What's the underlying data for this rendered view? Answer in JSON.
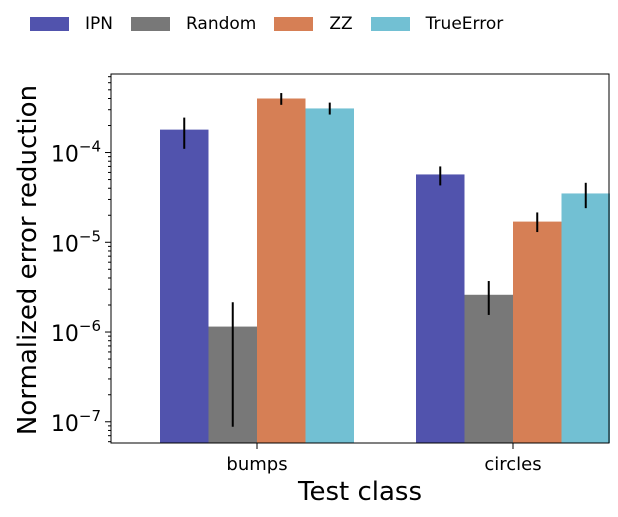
{
  "chart_data": {
    "type": "bar",
    "xlabel": "Test class",
    "ylabel": "Normalized error reduction",
    "yscale": "log",
    "ylim": [
      5.8e-08,
      0.00075
    ],
    "legend_position": "top",
    "grid": false,
    "categories": [
      "bumps",
      "circles"
    ],
    "series": [
      {
        "name": "IPN",
        "color": "#5153ad",
        "values": [
          0.00018,
          5.7e-05
        ],
        "err_low": [
          0.00011,
          4.3e-05
        ],
        "err_high": [
          0.000245,
          7e-05
        ]
      },
      {
        "name": "Random",
        "color": "#787878",
        "values": [
          1.15e-06,
          2.6e-06
        ],
        "err_low": [
          8.8e-08,
          1.55e-06
        ],
        "err_high": [
          2.15e-06,
          3.7e-06
        ]
      },
      {
        "name": "ZZ",
        "color": "#d67f55",
        "values": [
          0.0004,
          1.7e-05
        ],
        "err_low": [
          0.00034,
          1.3e-05
        ],
        "err_high": [
          0.00046,
          2.15e-05
        ]
      },
      {
        "name": "TrueError",
        "color": "#72c0d3",
        "values": [
          0.00031,
          3.5e-05
        ],
        "err_low": [
          0.000265,
          2.4e-05
        ],
        "err_high": [
          0.00036,
          4.6e-05
        ]
      }
    ],
    "yticks": [
      {
        "value": 1e-07,
        "base": "10",
        "exp": "−7"
      },
      {
        "value": 1e-06,
        "base": "10",
        "exp": "−6"
      },
      {
        "value": 1e-05,
        "base": "10",
        "exp": "−5"
      },
      {
        "value": 0.0001,
        "base": "10",
        "exp": "−4"
      }
    ]
  }
}
